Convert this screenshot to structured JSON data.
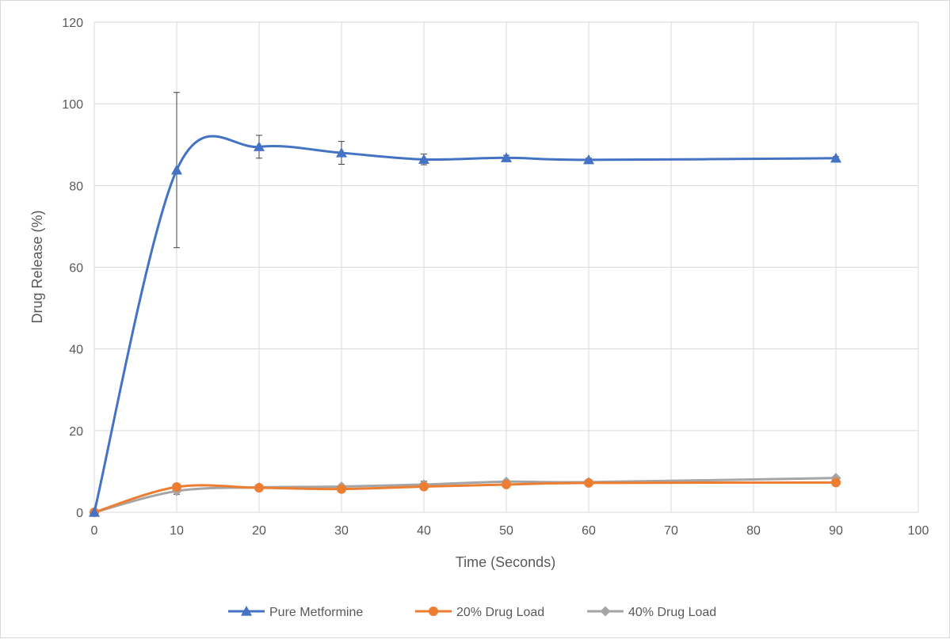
{
  "chart_data": {
    "type": "line",
    "title": "",
    "xlabel": "Time (Seconds)",
    "ylabel": "Drug  Release (%)",
    "xlim": [
      0,
      100
    ],
    "ylim": [
      0,
      120
    ],
    "xticks": [
      0,
      10,
      20,
      30,
      40,
      50,
      60,
      70,
      80,
      90,
      100
    ],
    "yticks": [
      0,
      20,
      40,
      60,
      80,
      100,
      120
    ],
    "grid": true,
    "legend_position": "bottom",
    "series": [
      {
        "name": "Pure Metformine",
        "color": "#4472c4",
        "marker": "triangle",
        "x": [
          0,
          10,
          20,
          30,
          40,
          50,
          60,
          90
        ],
        "y": [
          0,
          83.8,
          89.5,
          88.0,
          86.4,
          86.8,
          86.3,
          86.7
        ],
        "error": [
          0,
          19,
          2.8,
          2.8,
          1.3,
          0.6,
          0.4,
          0.4
        ]
      },
      {
        "name": "20% Drug Load",
        "color": "#ed7d31",
        "marker": "circle",
        "x": [
          0,
          10,
          20,
          30,
          40,
          50,
          60,
          90
        ],
        "y": [
          0,
          6.2,
          6.0,
          5.7,
          6.3,
          6.8,
          7.2,
          7.3
        ],
        "error": [
          0,
          0.6,
          0.3,
          0.3,
          0.3,
          0.3,
          0.3,
          0.3
        ]
      },
      {
        "name": "40% Drug Load",
        "color": "#a5a5a5",
        "marker": "diamond",
        "x": [
          0,
          10,
          20,
          30,
          40,
          50,
          60,
          90
        ],
        "y": [
          0,
          5.2,
          6.1,
          6.3,
          6.8,
          7.5,
          7.4,
          8.4
        ],
        "error": [
          0,
          0.8,
          0.3,
          0.3,
          0.8,
          0.3,
          0.3,
          0.4
        ]
      }
    ]
  }
}
